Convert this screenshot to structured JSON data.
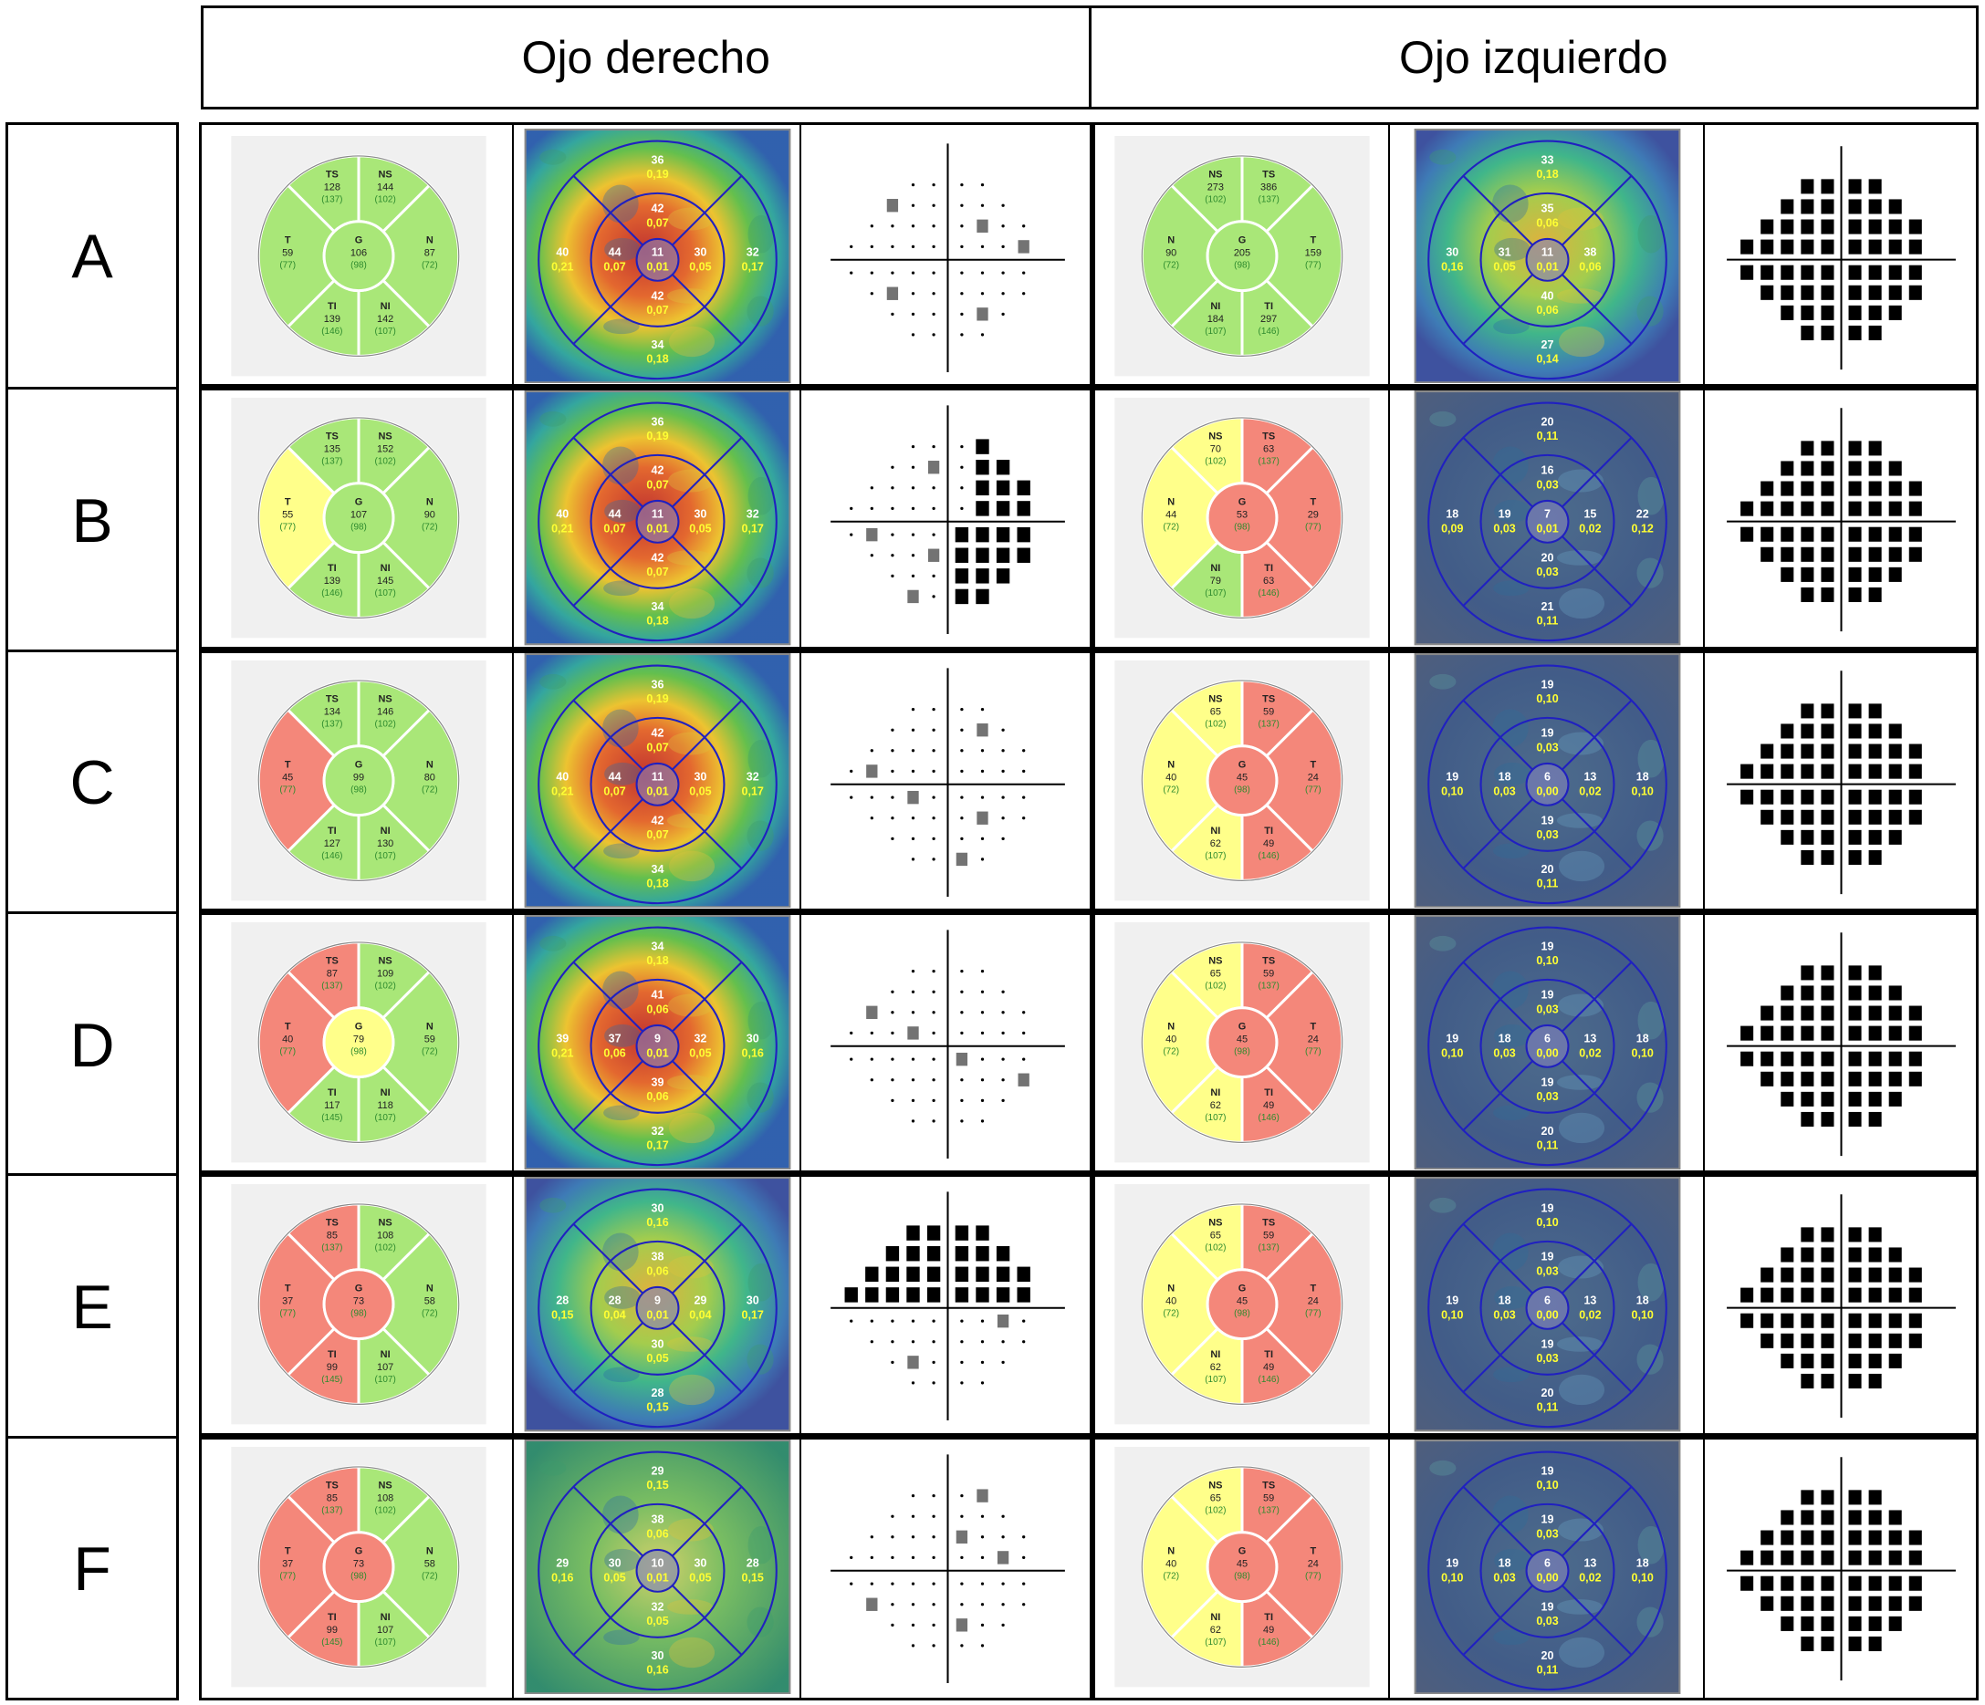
{
  "header": {
    "right_eye": "Ojo derecho",
    "left_eye": "Ojo izquierdo"
  },
  "colors": {
    "green": "#a9e778",
    "yellow": "#ffff8a",
    "red": "#f4877a",
    "normal_text": "#2e8b2e",
    "map_yellow": "#ffff33"
  },
  "rows": [
    {
      "label": "A",
      "right": {
        "circle": {
          "TS": [
            "128",
            "(137)",
            "g"
          ],
          "NS": [
            "144",
            "(102)",
            "g"
          ],
          "T": [
            "59",
            "(77)",
            "g"
          ],
          "G": [
            "106",
            "(98)",
            "g"
          ],
          "N": [
            "87",
            "(72)",
            "g"
          ],
          "TI": [
            "139",
            "(146)",
            "g"
          ],
          "NI": [
            "142",
            "(107)",
            "g"
          ]
        },
        "map": {
          "top": [
            "36",
            "0,19"
          ],
          "inTop": [
            "42",
            "0,07"
          ],
          "left": [
            "40",
            "0,21"
          ],
          "inLeft": [
            "44",
            "0,07"
          ],
          "center": [
            "11",
            "0,01"
          ],
          "inRight": [
            "30",
            "0,05"
          ],
          "right": [
            "32",
            "0,17"
          ],
          "inBottom": [
            "42",
            "0,07"
          ],
          "bottom": [
            "34",
            "0,18"
          ]
        },
        "field": "sparse"
      },
      "left": {
        "circle": {
          "NS": [
            "273",
            "(102)",
            "g"
          ],
          "TS": [
            "386",
            "(137)",
            "g"
          ],
          "N": [
            "90",
            "(72)",
            "g"
          ],
          "G": [
            "205",
            "(98)",
            "g"
          ],
          "T": [
            "159",
            "(77)",
            "g"
          ],
          "NI": [
            "184",
            "(107)",
            "g"
          ],
          "TI": [
            "297",
            "(146)",
            "g"
          ]
        },
        "map": {
          "top": [
            "33",
            "0,18"
          ],
          "inTop": [
            "35",
            "0,06"
          ],
          "left": [
            "30",
            "0,16"
          ],
          "inLeft": [
            "31",
            "0,05"
          ],
          "center": [
            "11",
            "0,01"
          ],
          "inRight": [
            "38",
            "0,06"
          ],
          "right": [
            "",
            ""
          ],
          "inBottom": [
            "40",
            "0,06"
          ],
          "bottom": [
            "27",
            "0,14"
          ]
        },
        "field": "full"
      }
    },
    {
      "label": "B",
      "right": {
        "circle": {
          "TS": [
            "135",
            "(137)",
            "g"
          ],
          "NS": [
            "152",
            "(102)",
            "g"
          ],
          "T": [
            "55",
            "(77)",
            "y"
          ],
          "G": [
            "107",
            "(98)",
            "g"
          ],
          "N": [
            "90",
            "(72)",
            "g"
          ],
          "TI": [
            "139",
            "(146)",
            "g"
          ],
          "NI": [
            "145",
            "(107)",
            "g"
          ]
        },
        "map": {
          "top": [
            "36",
            "0,19"
          ],
          "inTop": [
            "42",
            "0,07"
          ],
          "left": [
            "40",
            "0,21"
          ],
          "inLeft": [
            "44",
            "0,07"
          ],
          "center": [
            "11",
            "0,01"
          ],
          "inRight": [
            "30",
            "0,05"
          ],
          "right": [
            "32",
            "0,17"
          ],
          "inBottom": [
            "42",
            "0,07"
          ],
          "bottom": [
            "34",
            "0,18"
          ]
        },
        "field": "nasal"
      },
      "left": {
        "circle": {
          "NS": [
            "70",
            "(102)",
            "y"
          ],
          "TS": [
            "63",
            "(137)",
            "r"
          ],
          "N": [
            "44",
            "(72)",
            "y"
          ],
          "G": [
            "53",
            "(98)",
            "r"
          ],
          "T": [
            "29",
            "(77)",
            "r"
          ],
          "NI": [
            "79",
            "(107)",
            "g"
          ],
          "TI": [
            "63",
            "(146)",
            "r"
          ]
        },
        "map": {
          "top": [
            "20",
            "0,11"
          ],
          "inTop": [
            "16",
            "0,03"
          ],
          "left": [
            "18",
            "0,09"
          ],
          "inLeft": [
            "19",
            "0,03"
          ],
          "center": [
            "7",
            "0,01"
          ],
          "inRight": [
            "15",
            "0,02"
          ],
          "right": [
            "22",
            "0,12"
          ],
          "inBottom": [
            "20",
            "0,03"
          ],
          "bottom": [
            "21",
            "0,11"
          ]
        },
        "field": "full"
      }
    },
    {
      "label": "C",
      "right": {
        "circle": {
          "TS": [
            "134",
            "(137)",
            "g"
          ],
          "NS": [
            "146",
            "(102)",
            "g"
          ],
          "T": [
            "45",
            "(77)",
            "r"
          ],
          "G": [
            "99",
            "(98)",
            "g"
          ],
          "N": [
            "80",
            "(72)",
            "g"
          ],
          "TI": [
            "127",
            "(146)",
            "g"
          ],
          "NI": [
            "130",
            "(107)",
            "g"
          ]
        },
        "map": {
          "top": [
            "36",
            "0,19"
          ],
          "inTop": [
            "42",
            "0,07"
          ],
          "left": [
            "40",
            "0,21"
          ],
          "inLeft": [
            "44",
            "0,07"
          ],
          "center": [
            "11",
            "0,01"
          ],
          "inRight": [
            "30",
            "0,05"
          ],
          "right": [
            "32",
            "0,17"
          ],
          "inBottom": [
            "42",
            "0,07"
          ],
          "bottom": [
            "34",
            "0,18"
          ]
        },
        "field": "sparse2"
      },
      "left": {
        "circle": {
          "NS": [
            "65",
            "(102)",
            "y"
          ],
          "TS": [
            "59",
            "(137)",
            "r"
          ],
          "N": [
            "40",
            "(72)",
            "y"
          ],
          "G": [
            "45",
            "(98)",
            "r"
          ],
          "T": [
            "24",
            "(77)",
            "r"
          ],
          "NI": [
            "62",
            "(107)",
            "y"
          ],
          "TI": [
            "49",
            "(146)",
            "r"
          ]
        },
        "map": {
          "top": [
            "19",
            "0,10"
          ],
          "inTop": [
            "19",
            "0,03"
          ],
          "left": [
            "19",
            "0,10"
          ],
          "inLeft": [
            "18",
            "0,03"
          ],
          "center": [
            "6",
            "0,00"
          ],
          "inRight": [
            "13",
            "0,02"
          ],
          "right": [
            "18",
            "0,10"
          ],
          "inBottom": [
            "19",
            "0,03"
          ],
          "bottom": [
            "20",
            "0,11"
          ]
        },
        "field": "full"
      }
    },
    {
      "label": "D",
      "right": {
        "circle": {
          "TS": [
            "87",
            "(137)",
            "r"
          ],
          "NS": [
            "109",
            "(102)",
            "g"
          ],
          "T": [
            "40",
            "(77)",
            "r"
          ],
          "G": [
            "79",
            "(98)",
            "y"
          ],
          "N": [
            "59",
            "(72)",
            "g"
          ],
          "TI": [
            "117",
            "(145)",
            "g"
          ],
          "NI": [
            "118",
            "(107)",
            "g"
          ]
        },
        "map": {
          "top": [
            "34",
            "0,18"
          ],
          "inTop": [
            "41",
            "0,06"
          ],
          "left": [
            "39",
            "0,21"
          ],
          "inLeft": [
            "37",
            "0,06"
          ],
          "center": [
            "9",
            "0,01"
          ],
          "inRight": [
            "32",
            "0,05"
          ],
          "right": [
            "30",
            "0,16"
          ],
          "inBottom": [
            "39",
            "0,06"
          ],
          "bottom": [
            "32",
            "0,17"
          ]
        },
        "field": "sparse3"
      },
      "left": {
        "circle": {
          "NS": [
            "65",
            "(102)",
            "y"
          ],
          "TS": [
            "59",
            "(137)",
            "r"
          ],
          "N": [
            "40",
            "(72)",
            "y"
          ],
          "G": [
            "45",
            "(98)",
            "r"
          ],
          "T": [
            "24",
            "(77)",
            "r"
          ],
          "NI": [
            "62",
            "(107)",
            "y"
          ],
          "TI": [
            "49",
            "(146)",
            "r"
          ]
        },
        "map": {
          "top": [
            "19",
            "0,10"
          ],
          "inTop": [
            "19",
            "0,03"
          ],
          "left": [
            "19",
            "0,10"
          ],
          "inLeft": [
            "18",
            "0,03"
          ],
          "center": [
            "6",
            "0,00"
          ],
          "inRight": [
            "13",
            "0,02"
          ],
          "right": [
            "18",
            "0,10"
          ],
          "inBottom": [
            "19",
            "0,03"
          ],
          "bottom": [
            "20",
            "0,11"
          ]
        },
        "field": "full"
      }
    },
    {
      "label": "E",
      "right": {
        "circle": {
          "TS": [
            "85",
            "(137)",
            "r"
          ],
          "NS": [
            "108",
            "(102)",
            "g"
          ],
          "T": [
            "37",
            "(77)",
            "r"
          ],
          "G": [
            "73",
            "(98)",
            "r"
          ],
          "N": [
            "58",
            "(72)",
            "g"
          ],
          "TI": [
            "99",
            "(145)",
            "r"
          ],
          "NI": [
            "107",
            "(107)",
            "g"
          ]
        },
        "map": {
          "top": [
            "30",
            "0,16"
          ],
          "inTop": [
            "38",
            "0,06"
          ],
          "left": [
            "28",
            "0,15"
          ],
          "inLeft": [
            "28",
            "0,04"
          ],
          "center": [
            "9",
            "0,01"
          ],
          "inRight": [
            "29",
            "0,04"
          ],
          "right": [
            "30",
            "0,17"
          ],
          "inBottom": [
            "30",
            "0,05"
          ],
          "bottom": [
            "28",
            "0,15"
          ]
        },
        "field": "superior"
      },
      "left": {
        "circle": {
          "NS": [
            "65",
            "(102)",
            "y"
          ],
          "TS": [
            "59",
            "(137)",
            "r"
          ],
          "N": [
            "40",
            "(72)",
            "y"
          ],
          "G": [
            "45",
            "(98)",
            "r"
          ],
          "T": [
            "24",
            "(77)",
            "r"
          ],
          "NI": [
            "62",
            "(107)",
            "y"
          ],
          "TI": [
            "49",
            "(146)",
            "r"
          ]
        },
        "map": {
          "top": [
            "19",
            "0,10"
          ],
          "inTop": [
            "19",
            "0,03"
          ],
          "left": [
            "19",
            "0,10"
          ],
          "inLeft": [
            "18",
            "0,03"
          ],
          "center": [
            "6",
            "0,00"
          ],
          "inRight": [
            "13",
            "0,02"
          ],
          "right": [
            "18",
            "0,10"
          ],
          "inBottom": [
            "19",
            "0,03"
          ],
          "bottom": [
            "20",
            "0,11"
          ]
        },
        "field": "full"
      }
    },
    {
      "label": "F",
      "right": {
        "circle": {
          "TS": [
            "85",
            "(137)",
            "r"
          ],
          "NS": [
            "108",
            "(102)",
            "g"
          ],
          "T": [
            "37",
            "(77)",
            "r"
          ],
          "G": [
            "73",
            "(98)",
            "r"
          ],
          "N": [
            "58",
            "(72)",
            "g"
          ],
          "TI": [
            "99",
            "(145)",
            "r"
          ],
          "NI": [
            "107",
            "(107)",
            "g"
          ]
        },
        "map": {
          "top": [
            "29",
            "0,15"
          ],
          "inTop": [
            "38",
            "0,06"
          ],
          "left": [
            "29",
            "0,16"
          ],
          "inLeft": [
            "30",
            "0,05"
          ],
          "center": [
            "10",
            "0,01"
          ],
          "inRight": [
            "30",
            "0,05"
          ],
          "right": [
            "28",
            "0,15"
          ],
          "inBottom": [
            "32",
            "0,05"
          ],
          "bottom": [
            "30",
            "0,16"
          ]
        },
        "field": "sparse4"
      },
      "left": {
        "circle": {
          "NS": [
            "65",
            "(102)",
            "y"
          ],
          "TS": [
            "59",
            "(137)",
            "r"
          ],
          "N": [
            "40",
            "(72)",
            "y"
          ],
          "G": [
            "45",
            "(98)",
            "r"
          ],
          "T": [
            "24",
            "(77)",
            "r"
          ],
          "NI": [
            "62",
            "(107)",
            "y"
          ],
          "TI": [
            "49",
            "(146)",
            "r"
          ]
        },
        "map": {
          "top": [
            "19",
            "0,10"
          ],
          "inTop": [
            "19",
            "0,03"
          ],
          "left": [
            "19",
            "0,10"
          ],
          "inLeft": [
            "18",
            "0,03"
          ],
          "center": [
            "6",
            "0,00"
          ],
          "inRight": [
            "13",
            "0,02"
          ],
          "right": [
            "18",
            "0,10"
          ],
          "inBottom": [
            "19",
            "0,03"
          ],
          "bottom": [
            "20",
            "0,11"
          ]
        },
        "field": "full"
      }
    }
  ]
}
